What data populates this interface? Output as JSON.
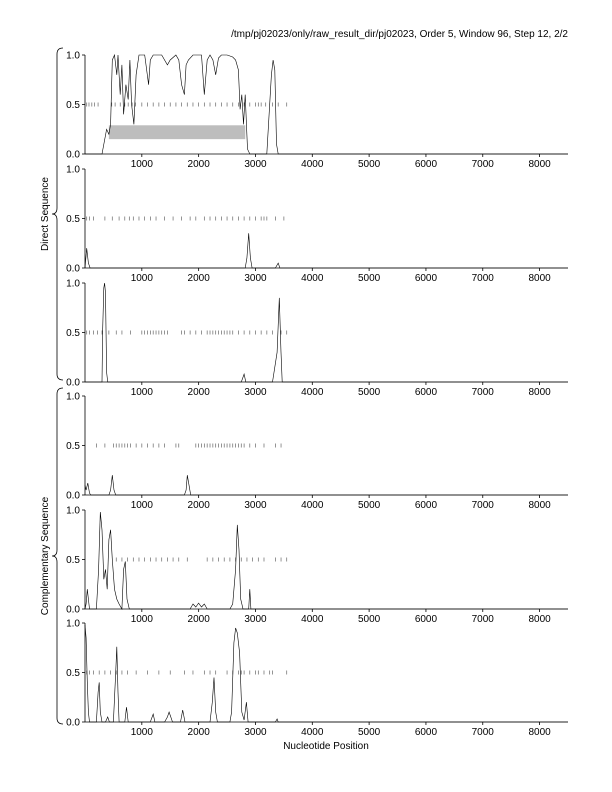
{
  "title": "/tmp/pj02023/only/raw_result_dir/pj02023, Order 5, Window 96, Step 12, 2/2",
  "xlabel": "Nucleotide Position",
  "group_labels": [
    "Direct Sequence",
    "Complementary Sequence"
  ],
  "colors": {
    "line": "#000000",
    "axis": "#000000",
    "highlight": "#bdbdbd"
  },
  "chart_data": [
    {
      "type": "line",
      "panel": 1,
      "group": "Direct Sequence",
      "xlim": [
        0,
        8500
      ],
      "ylim": [
        0,
        1
      ],
      "xticks": [
        1000,
        2000,
        3000,
        4000,
        5000,
        6000,
        7000,
        8000
      ],
      "yticks": [
        0.0,
        0.5,
        1.0
      ],
      "grid": false,
      "highlight": {
        "x0": 420,
        "x1": 2820,
        "y0": 0.15,
        "y1": 0.29
      },
      "markers_y": 0.5,
      "markers_x": [
        30,
        70,
        120,
        170,
        230,
        470,
        530,
        620,
        700,
        760,
        830,
        890,
        1000,
        1100,
        1200,
        1300,
        1400,
        1500,
        1600,
        1700,
        1800,
        1900,
        2000,
        2100,
        2200,
        2300,
        2400,
        2500,
        2600,
        2700,
        2800,
        2900,
        3000,
        3050,
        3100,
        3180,
        3300,
        3400,
        3550
      ],
      "series": [
        {
          "values": [
            [
              0,
              0
            ],
            [
              300,
              0
            ],
            [
              380,
              0.25
            ],
            [
              420,
              0.2
            ],
            [
              450,
              0.3
            ],
            [
              480,
              0.95
            ],
            [
              520,
              1.0
            ],
            [
              560,
              0.8
            ],
            [
              580,
              1.0
            ],
            [
              620,
              0.6
            ],
            [
              650,
              0.9
            ],
            [
              680,
              0.4
            ],
            [
              720,
              0.7
            ],
            [
              760,
              0.55
            ],
            [
              790,
              0.95
            ],
            [
              820,
              0.5
            ],
            [
              860,
              0.3
            ],
            [
              900,
              0.8
            ],
            [
              950,
              1.0
            ],
            [
              1050,
              1.0
            ],
            [
              1120,
              0.7
            ],
            [
              1150,
              0.95
            ],
            [
              1200,
              1.0
            ],
            [
              1350,
              1.0
            ],
            [
              1450,
              0.9
            ],
            [
              1500,
              0.95
            ],
            [
              1600,
              1.0
            ],
            [
              1650,
              0.95
            ],
            [
              1700,
              0.7
            ],
            [
              1750,
              0.6
            ],
            [
              1780,
              0.9
            ],
            [
              1820,
              0.95
            ],
            [
              1900,
              1.0
            ],
            [
              2050,
              1.0
            ],
            [
              2100,
              0.6
            ],
            [
              2150,
              0.95
            ],
            [
              2200,
              1.0
            ],
            [
              2250,
              0.95
            ],
            [
              2300,
              0.8
            ],
            [
              2350,
              0.97
            ],
            [
              2400,
              1.0
            ],
            [
              2500,
              1.0
            ],
            [
              2600,
              0.98
            ],
            [
              2650,
              0.95
            ],
            [
              2700,
              0.85
            ],
            [
              2730,
              0.45
            ],
            [
              2760,
              0.6
            ],
            [
              2790,
              0.3
            ],
            [
              2820,
              0.6
            ],
            [
              2860,
              0.05
            ],
            [
              2900,
              0.0
            ],
            [
              3200,
              0.0
            ],
            [
              3280,
              0.8
            ],
            [
              3310,
              0.95
            ],
            [
              3340,
              0.85
            ],
            [
              3370,
              0.1
            ],
            [
              3400,
              0.0
            ],
            [
              8500,
              0
            ]
          ]
        }
      ]
    },
    {
      "type": "line",
      "panel": 2,
      "group": "Direct Sequence",
      "xlim": [
        0,
        8500
      ],
      "ylim": [
        0,
        1
      ],
      "xticks": [
        1000,
        2000,
        3000,
        4000,
        5000,
        6000,
        7000,
        8000
      ],
      "yticks": [
        0.0,
        0.5,
        1.0
      ],
      "grid": false,
      "markers_y": 0.5,
      "markers_x": [
        30,
        80,
        150,
        350,
        480,
        600,
        700,
        780,
        850,
        950,
        1050,
        1150,
        1250,
        1400,
        1550,
        1700,
        1850,
        1950,
        2100,
        2200,
        2300,
        2400,
        2500,
        2600,
        2700,
        2800,
        2900,
        3000,
        3100,
        3150,
        3200,
        3350,
        3500
      ],
      "series": [
        {
          "values": [
            [
              0,
              0
            ],
            [
              30,
              0.2
            ],
            [
              60,
              0.05
            ],
            [
              90,
              0
            ],
            [
              2820,
              0
            ],
            [
              2850,
              0.1
            ],
            [
              2880,
              0.35
            ],
            [
              2910,
              0.1
            ],
            [
              2940,
              0
            ],
            [
              3350,
              0
            ],
            [
              3400,
              0.05
            ],
            [
              3430,
              0
            ],
            [
              8500,
              0
            ]
          ]
        }
      ]
    },
    {
      "type": "line",
      "panel": 3,
      "group": "Direct Sequence",
      "xlim": [
        0,
        8500
      ],
      "ylim": [
        0,
        1
      ],
      "xticks": [
        1000,
        2000,
        3000,
        4000,
        5000,
        6000,
        7000,
        8000
      ],
      "yticks": [
        0.0,
        0.5,
        1.0
      ],
      "grid": false,
      "markers_y": 0.5,
      "markers_x": [
        30,
        80,
        150,
        220,
        300,
        420,
        550,
        650,
        800,
        1000,
        1050,
        1100,
        1150,
        1200,
        1250,
        1300,
        1350,
        1400,
        1450,
        1700,
        1750,
        1850,
        1950,
        2050,
        2150,
        2200,
        2250,
        2300,
        2350,
        2400,
        2450,
        2500,
        2550,
        2600,
        2700,
        2800,
        2900,
        3000,
        3100,
        3200,
        3300,
        3450,
        3550
      ],
      "series": [
        {
          "values": [
            [
              0,
              0
            ],
            [
              300,
              0
            ],
            [
              310,
              0.5
            ],
            [
              330,
              0.95
            ],
            [
              345,
              1.0
            ],
            [
              360,
              0.9
            ],
            [
              380,
              0.1
            ],
            [
              400,
              0
            ],
            [
              2750,
              0
            ],
            [
              2800,
              0.08
            ],
            [
              2830,
              0
            ],
            [
              3300,
              0
            ],
            [
              3380,
              0.3
            ],
            [
              3420,
              0.85
            ],
            [
              3450,
              0.3
            ],
            [
              3470,
              0
            ],
            [
              8500,
              0
            ]
          ]
        }
      ]
    },
    {
      "type": "line",
      "panel": 4,
      "group": "Complementary Sequence",
      "xlim": [
        0,
        8500
      ],
      "ylim": [
        0,
        1
      ],
      "xticks": [
        1000,
        2000,
        3000,
        4000,
        5000,
        6000,
        7000,
        8000
      ],
      "yticks": [
        0.0,
        0.5,
        1.0
      ],
      "grid": false,
      "markers_y": 0.5,
      "markers_x": [
        200,
        350,
        500,
        550,
        600,
        650,
        700,
        750,
        800,
        900,
        1000,
        1100,
        1200,
        1300,
        1400,
        1600,
        1650,
        1950,
        2000,
        2050,
        2100,
        2150,
        2200,
        2250,
        2300,
        2350,
        2400,
        2450,
        2500,
        2550,
        2600,
        2650,
        2700,
        2750,
        2800,
        2900,
        3000,
        3150,
        3350,
        3450
      ],
      "series": [
        {
          "values": [
            [
              0,
              0.1
            ],
            [
              20,
              0.05
            ],
            [
              50,
              0.12
            ],
            [
              80,
              0.02
            ],
            [
              100,
              0
            ],
            [
              420,
              0
            ],
            [
              450,
              0.05
            ],
            [
              480,
              0.2
            ],
            [
              510,
              0.05
            ],
            [
              540,
              0
            ],
            [
              1750,
              0
            ],
            [
              1780,
              0.05
            ],
            [
              1800,
              0.2
            ],
            [
              1830,
              0.1
            ],
            [
              1860,
              0
            ],
            [
              8500,
              0
            ]
          ]
        }
      ]
    },
    {
      "type": "line",
      "panel": 5,
      "group": "Complementary Sequence",
      "xlim": [
        0,
        8500
      ],
      "ylim": [
        0,
        1
      ],
      "xticks": [
        1000,
        2000,
        3000,
        4000,
        5000,
        6000,
        7000,
        8000
      ],
      "yticks": [
        0.0,
        0.5,
        1.0
      ],
      "grid": false,
      "markers_y": 0.5,
      "markers_x": [
        550,
        650,
        750,
        850,
        950,
        1050,
        1150,
        1250,
        1350,
        1450,
        1550,
        1650,
        1800,
        2150,
        2250,
        2350,
        2450,
        2550,
        2650,
        2750,
        2850,
        2950,
        3050,
        3150,
        3350,
        3450,
        3550
      ],
      "series": [
        {
          "values": [
            [
              0,
              0
            ],
            [
              20,
              0.05
            ],
            [
              40,
              0.2
            ],
            [
              60,
              0.1
            ],
            [
              80,
              0
            ],
            [
              200,
              0
            ],
            [
              240,
              0.4
            ],
            [
              270,
              0.98
            ],
            [
              300,
              0.8
            ],
            [
              330,
              0.3
            ],
            [
              360,
              0.4
            ],
            [
              390,
              0.2
            ],
            [
              420,
              0.7
            ],
            [
              450,
              0.8
            ],
            [
              480,
              0.5
            ],
            [
              520,
              0.2
            ],
            [
              560,
              0.1
            ],
            [
              600,
              0.05
            ],
            [
              650,
              0
            ],
            [
              680,
              0.4
            ],
            [
              710,
              0.48
            ],
            [
              740,
              0.1
            ],
            [
              780,
              0
            ],
            [
              1850,
              0
            ],
            [
              1900,
              0.05
            ],
            [
              1950,
              0.02
            ],
            [
              2000,
              0.06
            ],
            [
              2050,
              0.02
            ],
            [
              2100,
              0.05
            ],
            [
              2150,
              0
            ],
            [
              2550,
              0
            ],
            [
              2600,
              0.05
            ],
            [
              2650,
              0.4
            ],
            [
              2680,
              0.85
            ],
            [
              2710,
              0.6
            ],
            [
              2740,
              0.1
            ],
            [
              2780,
              0
            ],
            [
              2880,
              0
            ],
            [
              2900,
              0.2
            ],
            [
              2920,
              0
            ],
            [
              8500,
              0
            ]
          ]
        }
      ]
    },
    {
      "type": "line",
      "panel": 6,
      "group": "Complementary Sequence",
      "xlim": [
        0,
        8500
      ],
      "ylim": [
        0,
        1
      ],
      "xticks": [
        1000,
        2000,
        3000,
        4000,
        5000,
        6000,
        7000,
        8000
      ],
      "yticks": [
        0.0,
        0.5,
        1.0
      ],
      "grid": false,
      "markers_y": 0.5,
      "markers_x": [
        30,
        80,
        150,
        250,
        350,
        450,
        550,
        650,
        750,
        900,
        1100,
        1300,
        1500,
        1750,
        1900,
        2100,
        2200,
        2300,
        2500,
        2600,
        2700,
        2750,
        2800,
        2900,
        3000,
        3050,
        3150,
        3250,
        3300,
        3550
      ],
      "series": [
        {
          "values": [
            [
              0,
              0.98
            ],
            [
              20,
              0.85
            ],
            [
              40,
              0.4
            ],
            [
              60,
              0.1
            ],
            [
              80,
              0
            ],
            [
              200,
              0
            ],
            [
              230,
              0.3
            ],
            [
              250,
              0.4
            ],
            [
              270,
              0.1
            ],
            [
              300,
              0
            ],
            [
              360,
              0
            ],
            [
              400,
              0.05
            ],
            [
              430,
              0
            ],
            [
              500,
              0
            ],
            [
              540,
              0.5
            ],
            [
              560,
              0.76
            ],
            [
              580,
              0.3
            ],
            [
              600,
              0
            ],
            [
              700,
              0
            ],
            [
              730,
              0.15
            ],
            [
              760,
              0
            ],
            [
              1150,
              0
            ],
            [
              1200,
              0.08
            ],
            [
              1230,
              0
            ],
            [
              1400,
              0
            ],
            [
              1450,
              0.05
            ],
            [
              1480,
              0.1
            ],
            [
              1510,
              0.05
            ],
            [
              1540,
              0
            ],
            [
              1680,
              0
            ],
            [
              1720,
              0.12
            ],
            [
              1760,
              0
            ],
            [
              2200,
              0
            ],
            [
              2240,
              0.2
            ],
            [
              2270,
              0.45
            ],
            [
              2300,
              0.1
            ],
            [
              2330,
              0
            ],
            [
              2550,
              0
            ],
            [
              2580,
              0.1
            ],
            [
              2620,
              0.8
            ],
            [
              2650,
              0.95
            ],
            [
              2680,
              0.9
            ],
            [
              2720,
              0.7
            ],
            [
              2760,
              0.1
            ],
            [
              2800,
              0.02
            ],
            [
              2840,
              0.2
            ],
            [
              2870,
              0
            ],
            [
              3350,
              0
            ],
            [
              3380,
              0.03
            ],
            [
              3400,
              0
            ],
            [
              8500,
              0
            ]
          ]
        }
      ]
    }
  ]
}
